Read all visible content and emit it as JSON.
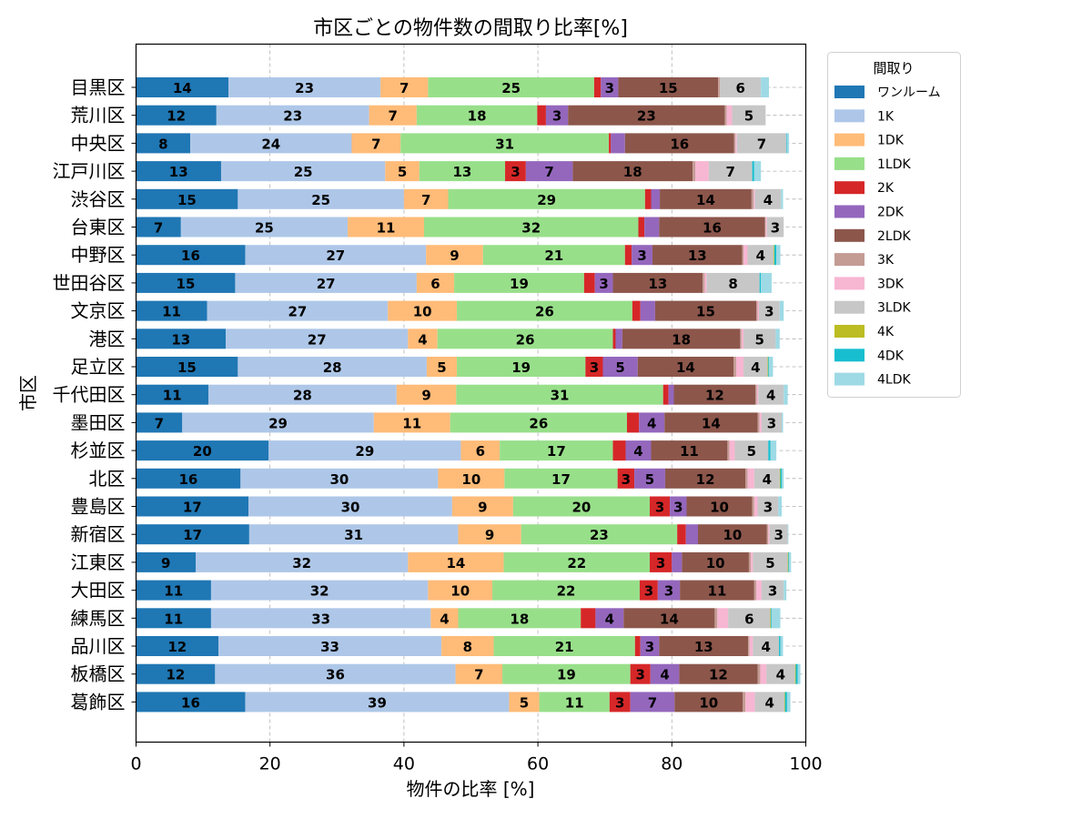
{
  "chart_data": {
    "type": "bar",
    "orientation": "horizontal",
    "stacked": true,
    "title": "市区ごとの物件数の間取り比率[%]",
    "xlabel": "物件の比率 [%]",
    "ylabel": "市区",
    "xlim": [
      0,
      100
    ],
    "xticks": [
      "0",
      "20",
      "40",
      "60",
      "80",
      "100"
    ],
    "grid": true,
    "legend": {
      "title": "間取り",
      "position": "outside-upper-right"
    },
    "categories": [
      "目黒区",
      "荒川区",
      "中央区",
      "江戸川区",
      "渋谷区",
      "台東区",
      "中野区",
      "世田谷区",
      "文京区",
      "港区",
      "足立区",
      "千代田区",
      "墨田区",
      "杉並区",
      "北区",
      "豊島区",
      "新宿区",
      "江東区",
      "大田区",
      "練馬区",
      "品川区",
      "板橋区",
      "葛飾区"
    ],
    "series": [
      {
        "name": "ワンルーム",
        "color": "#1f77b4",
        "values": [
          13.8,
          12.0,
          8.1,
          12.7,
          15.2,
          6.7,
          16.3,
          14.8,
          10.6,
          13.4,
          15.2,
          10.8,
          6.9,
          19.8,
          15.6,
          16.8,
          16.9,
          8.9,
          11.2,
          11.2,
          12.3,
          11.8,
          16.3
        ]
      },
      {
        "name": "1K",
        "color": "#aec7e8",
        "values": [
          22.7,
          22.8,
          24.1,
          24.5,
          24.8,
          24.9,
          27.0,
          27.1,
          27.0,
          27.2,
          28.2,
          28.1,
          28.6,
          28.7,
          29.5,
          30.4,
          31.2,
          31.7,
          32.4,
          32.8,
          33.3,
          35.9,
          39.4
        ]
      },
      {
        "name": "1DK",
        "color": "#ffbb78",
        "values": [
          7.1,
          7.1,
          7.3,
          5.1,
          6.6,
          11.4,
          8.5,
          5.6,
          10.3,
          4.4,
          4.5,
          8.9,
          11.4,
          5.8,
          9.9,
          9.1,
          9.4,
          14.3,
          9.6,
          4.1,
          7.8,
          7.0,
          4.5
        ]
      },
      {
        "name": "1LDK",
        "color": "#98df8a",
        "values": [
          24.8,
          18.0,
          31.1,
          12.8,
          29.4,
          32.0,
          21.2,
          19.4,
          26.2,
          26.2,
          19.2,
          30.9,
          26.4,
          16.9,
          16.9,
          20.4,
          23.3,
          21.8,
          22.0,
          18.3,
          21.1,
          19.1,
          10.5
        ]
      },
      {
        "name": "2K",
        "color": "#d62728",
        "values": [
          1.0,
          1.3,
          0.3,
          3.1,
          0.9,
          0.9,
          1.0,
          1.6,
          1.2,
          0.4,
          2.6,
          0.8,
          1.8,
          1.9,
          2.5,
          3.0,
          1.3,
          3.3,
          2.7,
          2.2,
          0.8,
          3.0,
          3.1
        ]
      },
      {
        "name": "2DK",
        "color": "#9467bd",
        "values": [
          2.6,
          3.3,
          2.1,
          7.0,
          1.3,
          2.2,
          3.1,
          2.7,
          2.2,
          1.0,
          5.2,
          0.8,
          3.8,
          3.8,
          4.6,
          2.5,
          1.8,
          1.5,
          3.3,
          4.2,
          2.8,
          4.3,
          6.6
        ]
      },
      {
        "name": "2LDK",
        "color": "#8c564b",
        "values": [
          14.9,
          23.4,
          16.3,
          17.9,
          13.7,
          15.8,
          13.4,
          13.4,
          15.1,
          17.6,
          14.3,
          12.2,
          13.9,
          11.4,
          12.0,
          9.8,
          10.3,
          10.0,
          11.1,
          13.6,
          13.3,
          11.7,
          10.2
        ]
      },
      {
        "name": "3K",
        "color": "#c49c94",
        "values": [
          0.3,
          0.3,
          0.2,
          0.4,
          0.3,
          0.1,
          0.2,
          0.3,
          0.2,
          0.2,
          0.4,
          0.2,
          0.3,
          0.3,
          0.3,
          0.3,
          0.2,
          0.3,
          0.3,
          0.4,
          0.2,
          0.4,
          0.4
        ]
      },
      {
        "name": "3DK",
        "color": "#f7b6d2",
        "values": [
          0.0,
          0.8,
          0.2,
          2.0,
          0.2,
          0.2,
          0.6,
          0.3,
          0.2,
          0.3,
          1.1,
          0.2,
          0.3,
          0.8,
          1.0,
          0.5,
          0.2,
          0.3,
          0.8,
          1.6,
          0.5,
          0.9,
          1.4
        ]
      },
      {
        "name": "3LDK",
        "color": "#c7c7c7",
        "values": [
          6.1,
          5.0,
          7.4,
          6.5,
          3.9,
          2.5,
          3.9,
          7.9,
          3.1,
          4.8,
          3.6,
          3.8,
          3.0,
          5.0,
          3.8,
          3.1,
          2.7,
          5.2,
          3.3,
          6.3,
          3.9,
          4.3,
          4.4
        ]
      },
      {
        "name": "4K",
        "color": "#bcbd22",
        "values": [
          0.0,
          0.0,
          0.0,
          0.0,
          0.0,
          0.0,
          0.1,
          0.0,
          0.0,
          0.0,
          0.1,
          0.0,
          0.0,
          0.0,
          0.1,
          0.0,
          0.0,
          0.1,
          0.0,
          0.1,
          0.0,
          0.1,
          0.1
        ]
      },
      {
        "name": "4DK",
        "color": "#17becf",
        "values": [
          0.0,
          0.0,
          0.1,
          0.3,
          0.0,
          0.0,
          0.3,
          0.2,
          0.0,
          0.0,
          0.1,
          0.0,
          0.0,
          0.3,
          0.2,
          0.0,
          0.0,
          0.1,
          0.0,
          0.1,
          0.2,
          0.3,
          0.3
        ]
      },
      {
        "name": "4LDK",
        "color": "#9edae5",
        "values": [
          1.2,
          0.0,
          0.3,
          1.0,
          0.3,
          0.0,
          0.6,
          1.6,
          0.6,
          0.6,
          0.6,
          0.6,
          0.2,
          0.9,
          0.3,
          0.5,
          0.1,
          0.3,
          0.4,
          1.3,
          0.4,
          0.4,
          0.5
        ]
      }
    ]
  }
}
